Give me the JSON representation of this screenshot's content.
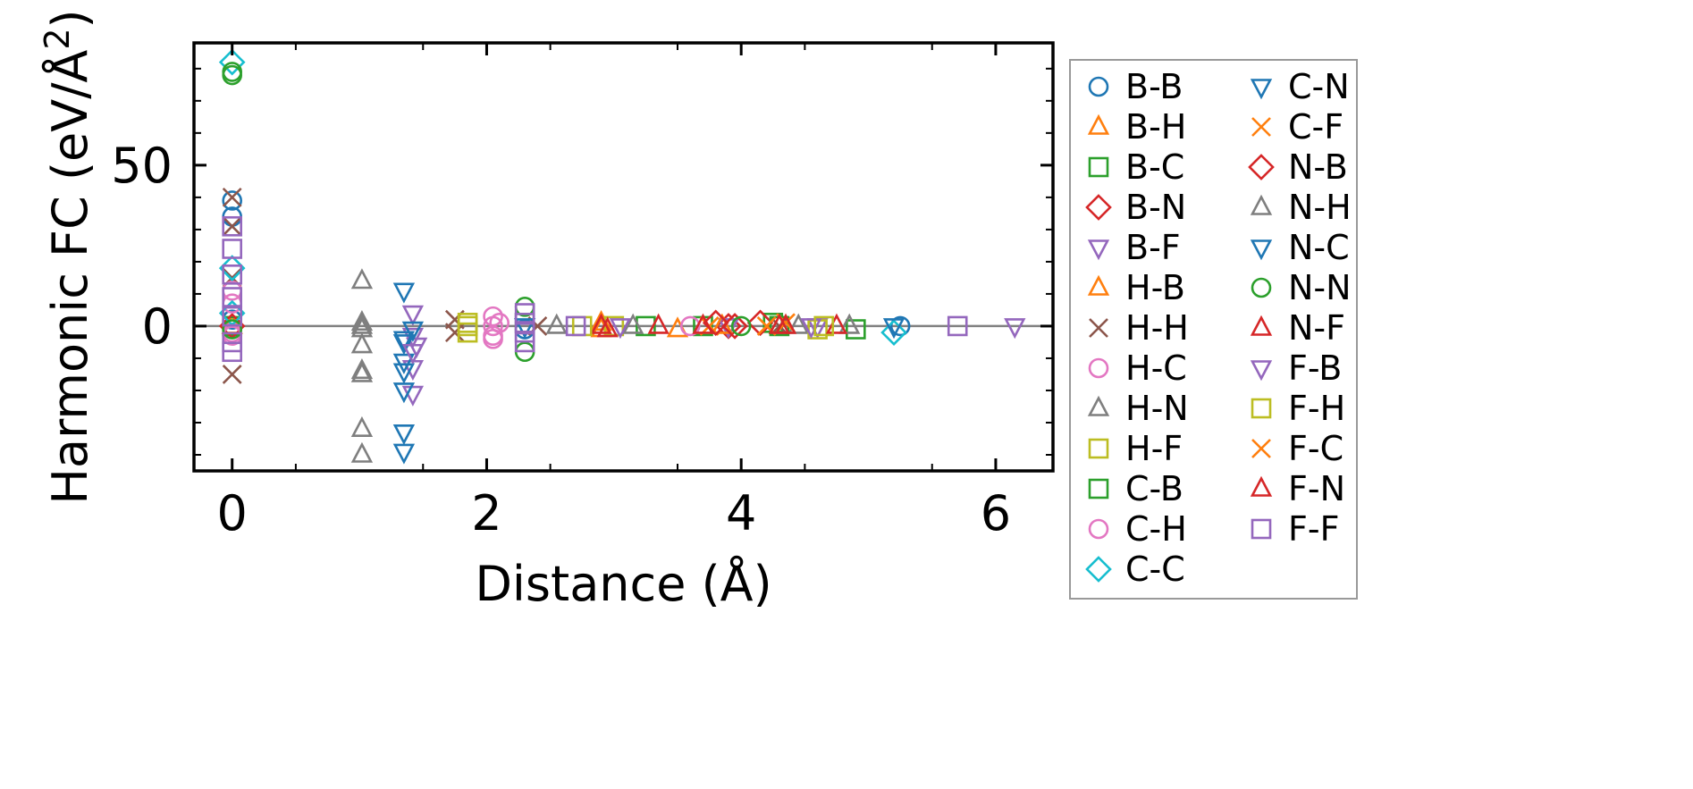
{
  "chart_data": {
    "type": "scatter",
    "title": "",
    "xlabel": "Distance (Å)",
    "ylabel": "Harmonic FC (eV/Å²)",
    "ylabel_main": "Harmonic FC (eV/Å",
    "ylabel_sup": "2",
    "ylabel_close": ")",
    "xlim": [
      -0.3,
      6.45
    ],
    "ylim": [
      -45,
      88
    ],
    "x_ticks": [
      0,
      2,
      4,
      6
    ],
    "x_tick_labels": [
      "0",
      "2",
      "4",
      "6"
    ],
    "y_ticks": [
      0,
      50
    ],
    "y_tick_labels": [
      "0",
      "50"
    ],
    "zero_line": true,
    "grid": false,
    "legend_position": "outside-right",
    "series": [
      {
        "name": "B-B",
        "marker": "circle",
        "color": "#1f77b4",
        "points": [
          [
            0,
            39
          ],
          [
            0,
            34
          ],
          [
            0,
            2
          ],
          [
            2.3,
            -1
          ],
          [
            5.25,
            0
          ]
        ]
      },
      {
        "name": "B-H",
        "marker": "triangle-up",
        "color": "#ff7f0e",
        "points": [
          [
            0,
            0
          ],
          [
            2.9,
            1
          ],
          [
            3.5,
            -1
          ]
        ]
      },
      {
        "name": "B-C",
        "marker": "square",
        "color": "#2ca02c",
        "points": [
          [
            0,
            0
          ],
          [
            2.3,
            1
          ],
          [
            3.7,
            0
          ],
          [
            4.25,
            1
          ],
          [
            4.9,
            -1
          ]
        ]
      },
      {
        "name": "B-N",
        "marker": "diamond",
        "color": "#d62728",
        "points": [
          [
            0,
            0
          ],
          [
            3.9,
            0
          ],
          [
            4.15,
            1
          ]
        ]
      },
      {
        "name": "B-F",
        "marker": "triangle-down",
        "color": "#9467bd",
        "points": [
          [
            1.42,
            -3
          ],
          [
            1.42,
            -13
          ],
          [
            1.42,
            -21
          ],
          [
            1.42,
            4
          ],
          [
            1.45,
            -6
          ],
          [
            3.9,
            0
          ],
          [
            4.6,
            0
          ],
          [
            6.15,
            0
          ]
        ]
      },
      {
        "name": "H-B",
        "marker": "triangle-up",
        "color": "#ff7f0e",
        "points": [
          [
            2.9,
            -1
          ],
          [
            3.85,
            0
          ]
        ]
      },
      {
        "name": "H-H",
        "marker": "x",
        "color": "#8c564b",
        "points": [
          [
            0,
            40
          ],
          [
            0,
            31
          ],
          [
            0,
            15
          ],
          [
            0,
            -15
          ],
          [
            1.75,
            2
          ],
          [
            1.75,
            -2
          ],
          [
            2.4,
            0
          ],
          [
            4.3,
            0
          ]
        ]
      },
      {
        "name": "H-C",
        "marker": "circle",
        "color": "#e377c2",
        "points": [
          [
            0,
            11
          ],
          [
            0,
            7
          ],
          [
            0,
            -3
          ],
          [
            2.05,
            3
          ],
          [
            2.05,
            0
          ],
          [
            2.05,
            -3
          ],
          [
            2.1,
            1
          ]
        ]
      },
      {
        "name": "H-N",
        "marker": "triangle-up",
        "color": "#7f7f7f",
        "points": [
          [
            1.02,
            14
          ],
          [
            1.02,
            1
          ],
          [
            1.02,
            -1
          ],
          [
            1.02,
            -6
          ],
          [
            1.02,
            -14
          ],
          [
            1.02,
            -32
          ],
          [
            1.02,
            -40
          ],
          [
            2.55,
            0
          ],
          [
            4.45,
            0
          ]
        ]
      },
      {
        "name": "H-F",
        "marker": "square",
        "color": "#bcbd22",
        "points": [
          [
            1.85,
            0
          ],
          [
            1.85,
            -2
          ],
          [
            3.0,
            0
          ],
          [
            4.6,
            -1
          ]
        ]
      },
      {
        "name": "C-B",
        "marker": "square",
        "color": "#2ca02c",
        "points": [
          [
            3.25,
            0
          ],
          [
            4.3,
            0
          ]
        ]
      },
      {
        "name": "C-H",
        "marker": "circle",
        "color": "#e377c2",
        "points": [
          [
            0,
            -2
          ],
          [
            2.05,
            -4
          ],
          [
            3.6,
            0
          ]
        ]
      },
      {
        "name": "C-C",
        "marker": "diamond",
        "color": "#17becf",
        "points": [
          [
            0,
            82
          ],
          [
            0,
            18
          ],
          [
            0,
            4
          ],
          [
            5.2,
            -2
          ]
        ]
      },
      {
        "name": "C-N",
        "marker": "triangle-down",
        "color": "#1f77b4",
        "points": [
          [
            1.35,
            11
          ],
          [
            1.35,
            -4
          ],
          [
            1.35,
            -11
          ],
          [
            1.35,
            -14
          ],
          [
            1.35,
            -20
          ],
          [
            1.35,
            -33
          ],
          [
            1.35,
            -39
          ],
          [
            1.42,
            -1
          ]
        ]
      },
      {
        "name": "C-F",
        "marker": "x",
        "color": "#ff7f0e",
        "points": [
          [
            3.75,
            0
          ],
          [
            4.35,
            1
          ]
        ]
      },
      {
        "name": "N-B",
        "marker": "diamond",
        "color": "#d62728",
        "points": [
          [
            3.8,
            1
          ],
          [
            3.95,
            0
          ]
        ]
      },
      {
        "name": "N-H",
        "marker": "triangle-up",
        "color": "#7f7f7f",
        "points": [
          [
            1.02,
            0
          ],
          [
            1.02,
            -15
          ],
          [
            3.15,
            0
          ],
          [
            4.85,
            0
          ]
        ]
      },
      {
        "name": "N-C",
        "marker": "triangle-down",
        "color": "#1f77b4",
        "points": [
          [
            1.35,
            -5
          ],
          [
            2.3,
            0
          ],
          [
            5.2,
            0
          ]
        ]
      },
      {
        "name": "N-N",
        "marker": "circle",
        "color": "#2ca02c",
        "points": [
          [
            0,
            79
          ],
          [
            0,
            78
          ],
          [
            0,
            -1
          ],
          [
            2.3,
            6
          ],
          [
            2.3,
            -8
          ],
          [
            4.0,
            0
          ]
        ]
      },
      {
        "name": "N-F",
        "marker": "triangle-up",
        "color": "#d62728",
        "points": [
          [
            2.9,
            0
          ],
          [
            3.35,
            0
          ],
          [
            3.7,
            0
          ],
          [
            4.35,
            0
          ],
          [
            4.75,
            0
          ]
        ]
      },
      {
        "name": "F-B",
        "marker": "triangle-down",
        "color": "#9467bd",
        "points": [
          [
            1.42,
            -8
          ],
          [
            3.05,
            0
          ],
          [
            4.55,
            0
          ]
        ]
      },
      {
        "name": "F-H",
        "marker": "square",
        "color": "#bcbd22",
        "points": [
          [
            1.85,
            1
          ],
          [
            2.75,
            0
          ],
          [
            4.65,
            0
          ]
        ]
      },
      {
        "name": "F-C",
        "marker": "x",
        "color": "#ff7f0e",
        "points": [
          [
            4.2,
            0
          ]
        ]
      },
      {
        "name": "F-N",
        "marker": "triangle-up",
        "color": "#d62728",
        "points": [
          [
            2.95,
            -1
          ],
          [
            4.3,
            0
          ]
        ]
      },
      {
        "name": "F-F",
        "marker": "square",
        "color": "#9467bd",
        "points": [
          [
            0,
            31
          ],
          [
            0,
            24
          ],
          [
            0,
            16
          ],
          [
            0,
            9
          ],
          [
            0,
            3
          ],
          [
            0,
            -5
          ],
          [
            0,
            -8
          ],
          [
            2.3,
            4
          ],
          [
            2.3,
            1
          ],
          [
            2.3,
            -2
          ],
          [
            2.3,
            -5
          ],
          [
            2.7,
            0
          ],
          [
            5.7,
            0
          ]
        ]
      }
    ]
  }
}
